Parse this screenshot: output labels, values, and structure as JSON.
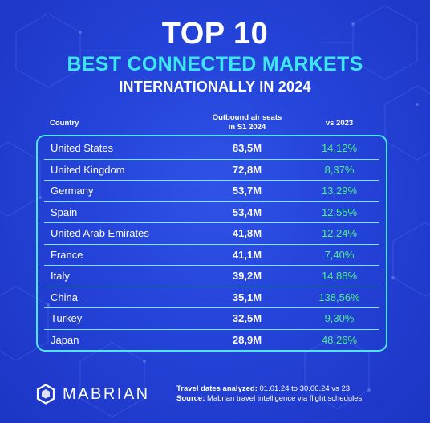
{
  "header": {
    "title_line1": "TOP 10",
    "title_line2": "BEST CONNECTED MARKETS",
    "title_line3": "INTERNATIONALLY IN 2024"
  },
  "table": {
    "columns": {
      "country": "Country",
      "seats_line1": "Outbound air seats",
      "seats_line2": "in S1 2024",
      "vs": "vs 2023"
    },
    "rows": [
      {
        "country": "United States",
        "seats": "83,5M",
        "vs": "14,12%"
      },
      {
        "country": "United Kingdom",
        "seats": "72,8M",
        "vs": "8,37%"
      },
      {
        "country": "Germany",
        "seats": "53,7M",
        "vs": "13,29%"
      },
      {
        "country": "Spain",
        "seats": "53,4M",
        "vs": "12,55%"
      },
      {
        "country": "United Arab Emirates",
        "seats": "41,8M",
        "vs": "12,24%"
      },
      {
        "country": "France",
        "seats": "41,1M",
        "vs": "7,40%"
      },
      {
        "country": "Italy",
        "seats": "39,2M",
        "vs": "14,88%"
      },
      {
        "country": "China",
        "seats": "35,1M",
        "vs": "138,56%"
      },
      {
        "country": "Turkey",
        "seats": "32,5M",
        "vs": "9,30%"
      },
      {
        "country": "Japan",
        "seats": "28,9M",
        "vs": "48,26%"
      }
    ]
  },
  "footer": {
    "travel_label": "Travel dates analyzed:",
    "travel_value": " 01.01.24 to 30.06.24 vs 23",
    "source_label": "Source:",
    "source_value": " Mabrian travel intelligence via flight schedules"
  },
  "logo": {
    "text": "MABRIAN"
  },
  "colors": {
    "background": "#2443d8",
    "accent_cyan": "#3ce6f2",
    "positive_green": "#4ff08a",
    "text_white": "#ffffff"
  }
}
